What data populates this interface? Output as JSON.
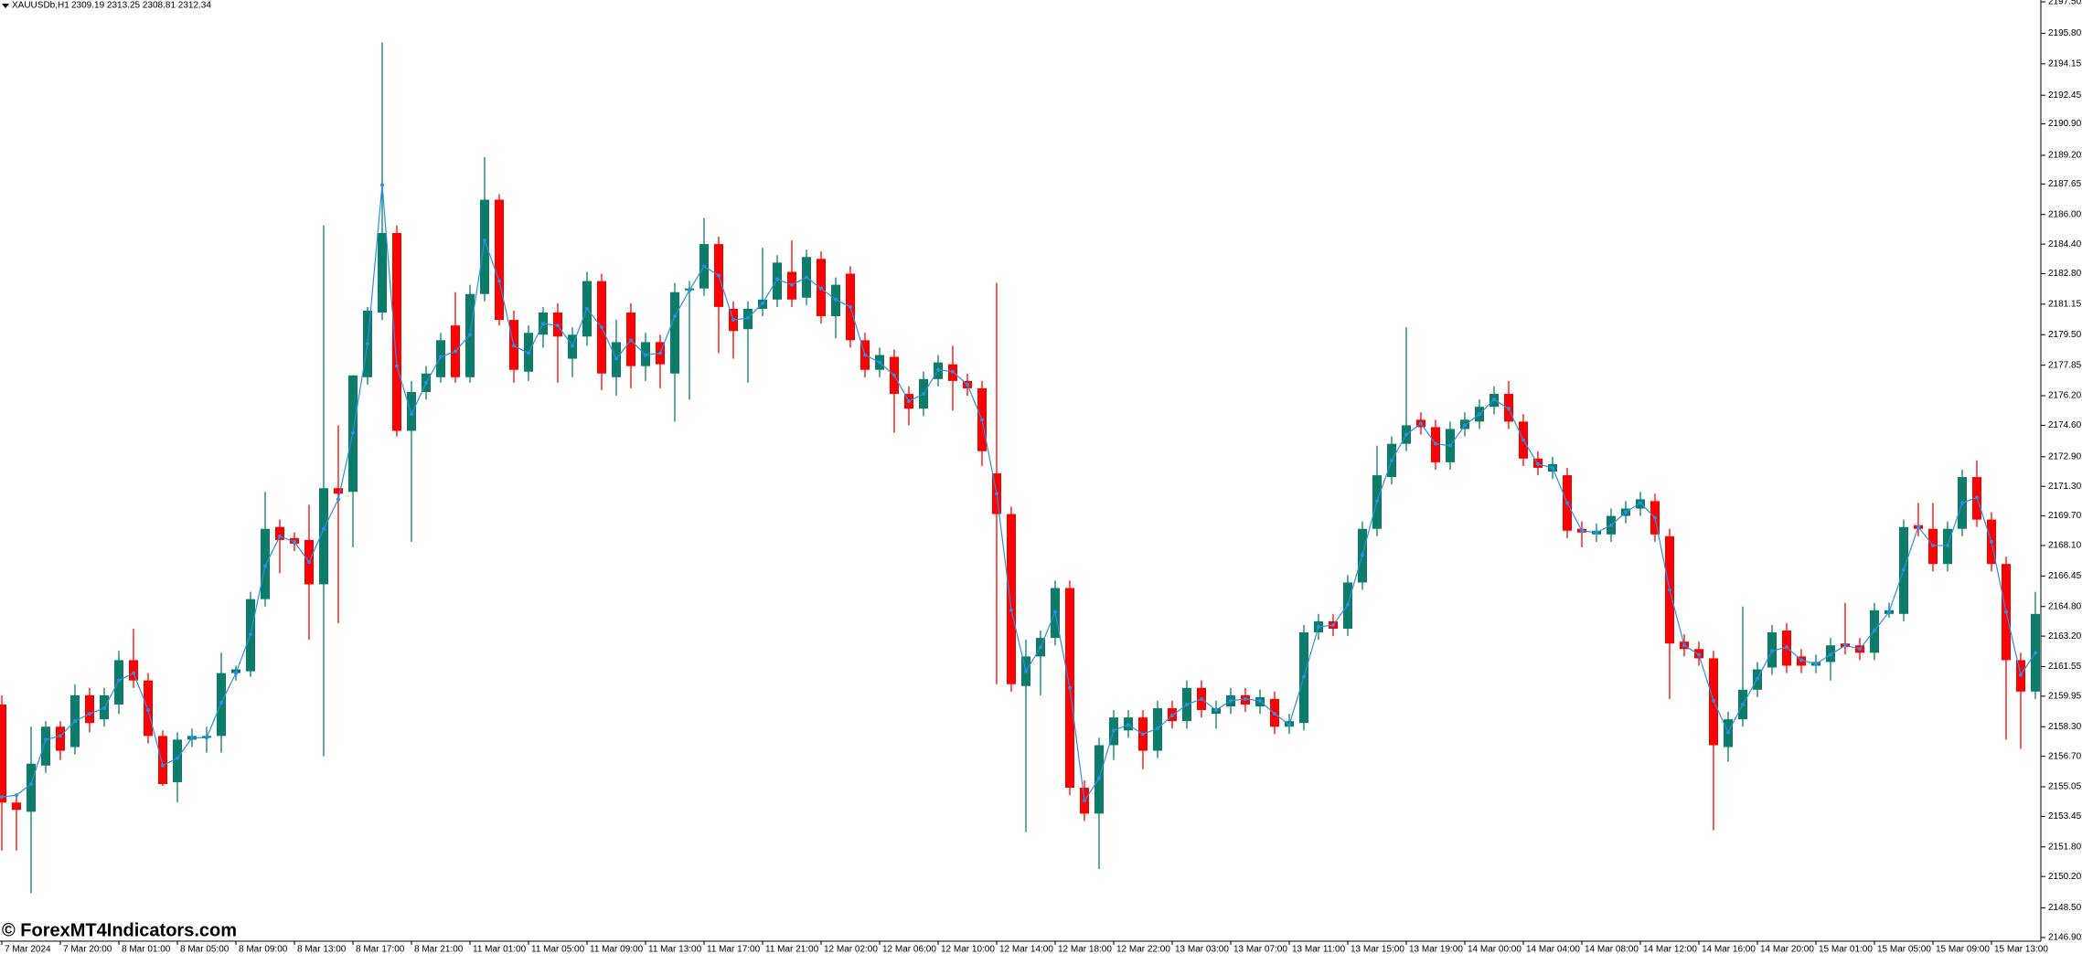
{
  "header": {
    "symbol": "XAUUSDb,H1",
    "quote": "2309.19 2313.25 2308.81 2312.34"
  },
  "watermark": "© ForexMT4Indicators.com",
  "chart_data": {
    "type": "candlestick",
    "categories": [
      "7 Mar 2024",
      null,
      null,
      null,
      "7 Mar 20:00",
      null,
      null,
      null,
      "8 Mar 01:00",
      null,
      null,
      null,
      "8 Mar 05:00",
      null,
      null,
      null,
      "8 Mar 09:00",
      null,
      null,
      null,
      "8 Mar 13:00",
      null,
      null,
      null,
      "8 Mar 17:00",
      null,
      null,
      null,
      "8 Mar 21:00",
      null,
      null,
      null,
      "11 Mar 01:00",
      null,
      null,
      null,
      "11 Mar 05:00",
      null,
      null,
      null,
      "11 Mar 09:00",
      null,
      null,
      null,
      "11 Mar 13:00",
      null,
      null,
      null,
      "11 Mar 17:00",
      null,
      null,
      null,
      "11 Mar 21:00",
      null,
      null,
      null,
      "12 Mar 02:00",
      null,
      null,
      null,
      "12 Mar 06:00",
      null,
      null,
      null,
      "12 Mar 10:00",
      null,
      null,
      null,
      "12 Mar 14:00",
      null,
      null,
      null,
      "12 Mar 18:00",
      null,
      null,
      null,
      "12 Mar 22:00",
      null,
      null,
      null,
      "13 Mar 03:00",
      null,
      null,
      null,
      "13 Mar 07:00",
      null,
      null,
      null,
      "13 Mar 11:00",
      null,
      null,
      null,
      "13 Mar 15:00",
      null,
      null,
      null,
      "13 Mar 19:00",
      null,
      null,
      null,
      "14 Mar 00:00",
      null,
      null,
      null,
      "14 Mar 04:00",
      null,
      null,
      null,
      "14 Mar 08:00",
      null,
      null,
      null,
      "14 Mar 12:00",
      null,
      null,
      null,
      "14 Mar 16:00",
      null,
      null,
      null,
      "14 Mar 20:00",
      null,
      null,
      null,
      "15 Mar 01:00",
      null,
      null,
      null,
      "15 Mar 05:00",
      null,
      null,
      null,
      "15 Mar 09:00",
      null,
      null,
      null,
      "15 Mar 13:00",
      null,
      null,
      null
    ],
    "open": [
      2159.5,
      2154.2,
      2153.7,
      2156.2,
      2158.3,
      2157.2,
      2160.0,
      2158.7,
      2159.5,
      2161.9,
      2160.8,
      2157.8,
      2155.3,
      2157.6,
      2157.7,
      2157.8,
      2161.2,
      2161.3,
      2165.2,
      2169.1,
      2168.5,
      2168.4,
      2166.0,
      2171.2,
      2171.0,
      2177.2,
      2180.7,
      2185.0,
      2174.3,
      2176.4,
      2177.2,
      2180.0,
      2177.2,
      2181.7,
      2186.8,
      2180.3,
      2177.5,
      2179.5,
      2180.7,
      2178.2,
      2179.4,
      2182.4,
      2177.2,
      2180.7,
      2177.8,
      2179.1,
      2177.4,
      2181.9,
      2182.0,
      2184.4,
      2180.9,
      2179.8,
      2180.9,
      2181.4,
      2182.9,
      2181.5,
      2183.6,
      2180.5,
      2182.8,
      2179.2,
      2177.6,
      2178.3,
      2176.3,
      2175.5,
      2177.1,
      2177.9,
      2177.0,
      2176.6,
      2172.0,
      2169.8,
      2160.5,
      2162.1,
      2163.1,
      2165.8,
      2155.0,
      2153.6,
      2157.3,
      2158.1,
      2158.8,
      2157.0,
      2159.3,
      2158.6,
      2160.4,
      2159.0,
      2159.4,
      2160.0,
      2159.4,
      2159.8,
      2158.3,
      2158.5,
      2163.4,
      2164.0,
      2163.6,
      2166.1,
      2169.0,
      2171.8,
      2173.6,
      2174.9,
      2174.5,
      2172.6,
      2174.4,
      2174.8,
      2175.6,
      2176.3,
      2174.8,
      2172.8,
      2172.1,
      2171.9,
      2169.0,
      2168.7,
      2168.7,
      2169.7,
      2170.1,
      2170.5,
      2168.6,
      2162.9,
      2162.5,
      2162.0,
      2157.2,
      2158.7,
      2160.3,
      2161.5,
      2163.5,
      2162.1,
      2161.6,
      2161.8,
      2162.8,
      2162.7,
      2162.3,
      2164.4,
      2164.4,
      2169.2,
      2169.0,
      2167.1,
      2169.0,
      2171.8,
      2169.5,
      2167.1,
      2161.9,
      2160.2
    ],
    "high": [
      2160.0,
      2154.6,
      2158.3,
      2158.6,
      2158.6,
      2160.6,
      2160.4,
      2160.4,
      2162.4,
      2163.6,
      2161.2,
      2158.1,
      2158.0,
      2158.2,
      2158.3,
      2162.3,
      2161.6,
      2165.6,
      2171.0,
      2169.5,
      2168.8,
      2170.3,
      2185.4,
      2174.6,
      2177.3,
      2181.0,
      2195.3,
      2185.4,
      2177.0,
      2177.8,
      2179.6,
      2181.8,
      2182.2,
      2189.1,
      2187.1,
      2180.8,
      2180.0,
      2181.0,
      2181.2,
      2179.9,
      2182.9,
      2182.8,
      2180.3,
      2181.2,
      2179.6,
      2179.5,
      2182.3,
      2182.4,
      2185.8,
      2184.8,
      2181.3,
      2181.3,
      2184.2,
      2183.8,
      2184.6,
      2184.1,
      2184.0,
      2182.6,
      2183.2,
      2179.6,
      2178.8,
      2178.7,
      2176.7,
      2177.5,
      2178.4,
      2178.9,
      2177.4,
      2177.0,
      2182.3,
      2170.2,
      2163.0,
      2163.5,
      2166.2,
      2166.2,
      2155.4,
      2157.7,
      2159.2,
      2159.2,
      2159.2,
      2159.7,
      2159.7,
      2160.8,
      2160.8,
      2159.7,
      2160.4,
      2160.4,
      2160.3,
      2160.2,
      2159.0,
      2163.8,
      2164.4,
      2164.4,
      2166.5,
      2169.4,
      2173.5,
      2174.0,
      2179.9,
      2175.3,
      2174.9,
      2174.8,
      2175.3,
      2176.0,
      2176.7,
      2177.0,
      2175.2,
      2173.2,
      2172.9,
      2172.3,
      2169.4,
      2169.3,
      2170.1,
      2170.5,
      2171.0,
      2170.9,
      2169.0,
      2163.3,
      2162.9,
      2162.4,
      2159.1,
      2164.8,
      2161.8,
      2163.8,
      2163.9,
      2162.5,
      2162.2,
      2163.1,
      2165.0,
      2163.1,
      2165.0,
      2165.0,
      2169.5,
      2170.4,
      2170.4,
      2169.4,
      2172.2,
      2172.7,
      2169.9,
      2167.5,
      2162.3,
      2165.6
    ],
    "low": [
      2151.6,
      2151.6,
      2149.3,
      2155.8,
      2156.5,
      2156.8,
      2158.0,
      2158.3,
      2159.0,
      2160.4,
      2157.4,
      2155.1,
      2154.2,
      2157.2,
      2156.9,
      2156.9,
      2160.8,
      2161.0,
      2164.8,
      2166.6,
      2167.8,
      2163.0,
      2156.7,
      2163.9,
      2168.0,
      2176.8,
      2180.3,
      2174.0,
      2168.3,
      2176.0,
      2176.9,
      2176.9,
      2176.9,
      2181.3,
      2180.0,
      2176.9,
      2177.0,
      2178.8,
      2176.9,
      2177.2,
      2178.9,
      2176.5,
      2176.2,
      2176.6,
      2177.0,
      2176.6,
      2174.8,
      2176.0,
      2181.6,
      2178.5,
      2178.2,
      2176.9,
      2180.5,
      2181.0,
      2181.0,
      2181.1,
      2180.1,
      2179.3,
      2178.8,
      2177.2,
      2177.2,
      2174.2,
      2174.6,
      2175.1,
      2176.7,
      2175.4,
      2176.2,
      2172.4,
      2160.6,
      2160.2,
      2152.6,
      2160.0,
      2162.7,
      2154.6,
      2153.2,
      2150.6,
      2156.5,
      2157.7,
      2156.0,
      2156.6,
      2158.2,
      2158.2,
      2158.8,
      2158.2,
      2159.0,
      2159.1,
      2159.0,
      2157.9,
      2157.9,
      2158.1,
      2163.0,
      2163.2,
      2163.2,
      2165.7,
      2168.6,
      2171.4,
      2173.2,
      2174.1,
      2172.2,
      2172.2,
      2174.0,
      2174.4,
      2175.2,
      2174.4,
      2172.4,
      2171.9,
      2171.7,
      2168.5,
      2168.0,
      2168.3,
      2168.3,
      2169.3,
      2169.7,
      2168.3,
      2159.8,
      2162.1,
      2161.6,
      2152.7,
      2156.4,
      2158.3,
      2159.9,
      2161.1,
      2161.2,
      2161.2,
      2161.2,
      2160.8,
      2162.2,
      2161.9,
      2161.9,
      2164.2,
      2164.0,
      2168.6,
      2166.7,
      2166.7,
      2168.6,
      2169.1,
      2166.7,
      2157.6,
      2157.1,
      2159.8
    ],
    "close": [
      2154.2,
      2153.8,
      2156.3,
      2158.3,
      2157.0,
      2160.0,
      2158.5,
      2160.0,
      2161.9,
      2160.8,
      2157.8,
      2155.2,
      2157.6,
      2157.8,
      2157.8,
      2161.2,
      2161.4,
      2165.2,
      2169.0,
      2168.4,
      2168.2,
      2166.0,
      2171.2,
      2170.9,
      2177.3,
      2180.8,
      2185.0,
      2174.3,
      2176.4,
      2177.4,
      2179.2,
      2177.2,
      2181.7,
      2186.8,
      2180.3,
      2177.6,
      2179.6,
      2180.7,
      2179.4,
      2179.5,
      2182.4,
      2177.4,
      2179.1,
      2177.8,
      2179.1,
      2177.9,
      2181.8,
      2182.0,
      2184.4,
      2181.0,
      2179.7,
      2180.9,
      2181.4,
      2183.4,
      2181.4,
      2183.7,
      2180.5,
      2182.2,
      2179.2,
      2177.6,
      2178.4,
      2176.3,
      2175.5,
      2177.1,
      2178.0,
      2177.0,
      2176.6,
      2173.2,
      2169.8,
      2160.6,
      2162.1,
      2163.1,
      2165.8,
      2155.0,
      2153.6,
      2157.3,
      2158.8,
      2158.8,
      2157.0,
      2159.3,
      2158.6,
      2160.4,
      2159.2,
      2159.3,
      2160.0,
      2159.5,
      2159.9,
      2158.3,
      2158.6,
      2163.4,
      2164.0,
      2163.6,
      2166.1,
      2169.0,
      2171.9,
      2173.6,
      2174.6,
      2174.5,
      2172.6,
      2174.4,
      2174.9,
      2175.6,
      2176.3,
      2174.8,
      2172.8,
      2172.3,
      2172.5,
      2168.9,
      2168.8,
      2168.9,
      2169.7,
      2170.1,
      2170.6,
      2168.7,
      2162.8,
      2162.5,
      2162.0,
      2157.3,
      2158.7,
      2160.3,
      2161.4,
      2163.4,
      2161.6,
      2161.6,
      2161.8,
      2162.7,
      2162.6,
      2162.3,
      2164.6,
      2164.6,
      2169.1,
      2169.0,
      2167.1,
      2169.0,
      2171.8,
      2169.5,
      2167.1,
      2161.9,
      2160.2,
      2164.4
    ],
    "up_color": "#0b7d6a",
    "down_color": "#ff0000",
    "series": [
      {
        "color": "#2b8fe8",
        "values": [
          2154.5,
          2154.6,
          2155.2,
          2157.6,
          2157.8,
          2158.6,
          2159.0,
          2159.3,
          2160.8,
          2161.2,
          2159.2,
          2156.2,
          2156.6,
          2157.7,
          2157.7,
          2159.6,
          2161.2,
          2163.3,
          2167.0,
          2168.6,
          2168.3,
          2167.2,
          2169.0,
          2170.6,
          2174.2,
          2179.0,
          2187.6,
          2177.8,
          2175.2,
          2176.9,
          2178.3,
          2178.6,
          2179.5,
          2184.6,
          2182.4,
          2178.9,
          2178.5,
          2180.1,
          2180.0,
          2178.9,
          2180.9,
          2179.9,
          2178.2,
          2179.2,
          2178.4,
          2178.5,
          2180.5,
          2181.9,
          2183.2,
          2182.7,
          2180.3,
          2180.4,
          2181.2,
          2182.5,
          2182.2,
          2182.6,
          2182.0,
          2181.4,
          2181.0,
          2178.4,
          2178.0,
          2177.3,
          2175.9,
          2176.3,
          2177.6,
          2177.5,
          2176.8,
          2174.9,
          2170.9,
          2164.6,
          2161.3,
          2162.6,
          2164.5,
          2160.4,
          2154.3,
          2155.5,
          2158.1,
          2158.4,
          2157.9,
          2158.2,
          2158.9,
          2159.5,
          2159.8,
          2159.2,
          2159.7,
          2159.8,
          2159.7,
          2159.0,
          2158.4,
          2161.0,
          2163.7,
          2163.8,
          2164.9,
          2167.6,
          2170.5,
          2172.7,
          2174.1,
          2174.7,
          2173.6,
          2173.5,
          2174.6,
          2175.2,
          2176.0,
          2175.5,
          2173.8,
          2172.5,
          2172.3,
          2170.4,
          2168.9,
          2168.8,
          2169.2,
          2169.9,
          2170.4,
          2169.6,
          2165.7,
          2162.7,
          2162.2,
          2159.7,
          2158.0,
          2159.5,
          2160.9,
          2162.4,
          2162.6,
          2161.9,
          2161.7,
          2162.2,
          2162.7,
          2162.5,
          2163.5,
          2164.5,
          2166.8,
          2169.1,
          2168.1,
          2168.1,
          2170.4,
          2170.7,
          2168.3,
          2164.5,
          2161.1,
          2162.3
        ]
      }
    ],
    "ylim": [
      2146.7,
      2197.6
    ],
    "yticks": [
      {
        "value": 2197.5,
        "label": "2197.50"
      },
      {
        "value": 2195.8,
        "label": "2195.80"
      },
      {
        "value": 2194.15,
        "label": "2194.15"
      },
      {
        "value": 2192.45,
        "label": "2192.45"
      },
      {
        "value": 2190.9,
        "label": "2190.90"
      },
      {
        "value": 2189.2,
        "label": "2189.20"
      },
      {
        "value": 2187.65,
        "label": "2187.65"
      },
      {
        "value": 2186,
        "label": "2186.00"
      },
      {
        "value": 2184.4,
        "label": "2184.40"
      },
      {
        "value": 2182.8,
        "label": "2182.80"
      },
      {
        "value": 2181.15,
        "label": "2181.15"
      },
      {
        "value": 2179.5,
        "label": "2179.50"
      },
      {
        "value": 2177.85,
        "label": "2177.85"
      },
      {
        "value": 2176.2,
        "label": "2176.20"
      },
      {
        "value": 2174.6,
        "label": "2174.60"
      },
      {
        "value": 2172.9,
        "label": "2172.90"
      },
      {
        "value": 2171.3,
        "label": "2171.30"
      },
      {
        "value": 2169.7,
        "label": "2169.70"
      },
      {
        "value": 2168.1,
        "label": "2168.10"
      },
      {
        "value": 2166.45,
        "label": "2166.45"
      },
      {
        "value": 2164.8,
        "label": "2164.80"
      },
      {
        "value": 2163.2,
        "label": "2163.20"
      },
      {
        "value": 2161.55,
        "label": "2161.55"
      },
      {
        "value": 2159.95,
        "label": "2159.95"
      },
      {
        "value": 2158.3,
        "label": "2158.30"
      },
      {
        "value": 2156.7,
        "label": "2156.70"
      },
      {
        "value": 2155.05,
        "label": "2155.05"
      },
      {
        "value": 2153.45,
        "label": "2153.45"
      },
      {
        "value": 2151.8,
        "label": "2151.80"
      },
      {
        "value": 2150.2,
        "label": "2150.20"
      },
      {
        "value": 2148.5,
        "label": "2148.50"
      },
      {
        "value": 2146.9,
        "label": "2146.90"
      }
    ]
  }
}
